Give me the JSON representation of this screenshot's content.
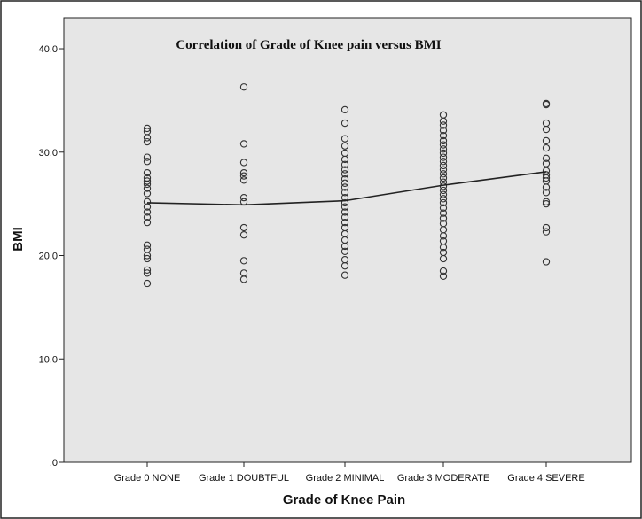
{
  "chart_data": {
    "type": "scatter",
    "title": "Correlation of Grade of Knee pain versus BMI",
    "xlabel": "Grade of Knee Pain",
    "ylabel": "BMI",
    "categories": [
      "Grade 0 NONE",
      "Grade 1 DOUBTFUL",
      "Grade 2 MINIMAL",
      "Grade 3 MODERATE",
      "Grade 4 SEVERE"
    ],
    "ylim": [
      0,
      43
    ],
    "yticks": [
      0,
      10,
      20,
      30,
      40
    ],
    "ytick_labels": [
      ".0",
      "10.0",
      "20.0",
      "30.0",
      "40.0"
    ],
    "grid": false,
    "colors": {
      "plot_background": "#e6e6e6",
      "points": "#333333",
      "line": "#222222"
    },
    "points": [
      [
        32.3,
        32.0,
        31.4,
        31.0,
        29.5,
        29.1,
        28.0,
        27.5,
        27.2,
        26.9,
        26.5,
        26.0,
        25.2,
        24.7,
        24.2,
        23.7,
        23.2,
        21.0,
        20.6,
        20.0,
        19.7,
        18.6,
        18.3,
        17.3
      ],
      [
        36.3,
        30.8,
        29.0,
        28.0,
        27.7,
        27.3,
        25.6,
        25.2,
        22.7,
        22.0,
        19.5,
        18.3,
        17.7
      ],
      [
        34.1,
        32.8,
        31.3,
        30.6,
        29.9,
        29.3,
        28.8,
        28.3,
        27.9,
        27.4,
        27.0,
        26.6,
        26.1,
        25.6,
        25.1,
        24.7,
        24.2,
        23.7,
        23.2,
        22.7,
        22.1,
        21.5,
        20.9,
        20.4,
        19.6,
        19.0,
        18.1
      ],
      [
        33.6,
        33.0,
        32.6,
        32.1,
        31.6,
        31.1,
        30.7,
        30.3,
        29.9,
        29.5,
        29.1,
        28.7,
        28.3,
        27.9,
        27.5,
        27.1,
        26.7,
        26.3,
        25.9,
        25.5,
        25.1,
        24.6,
        24.1,
        23.6,
        23.1,
        22.5,
        21.9,
        21.4,
        20.8,
        20.3,
        19.7,
        18.5,
        18.0
      ],
      [
        34.7,
        34.6,
        32.8,
        32.2,
        31.1,
        30.4,
        29.4,
        28.9,
        28.2,
        27.8,
        27.5,
        27.2,
        26.6,
        26.1,
        25.2,
        25.0,
        22.7,
        22.3,
        19.4
      ]
    ],
    "mean_line": [
      25.1,
      24.9,
      25.3,
      26.8,
      28.1
    ]
  }
}
